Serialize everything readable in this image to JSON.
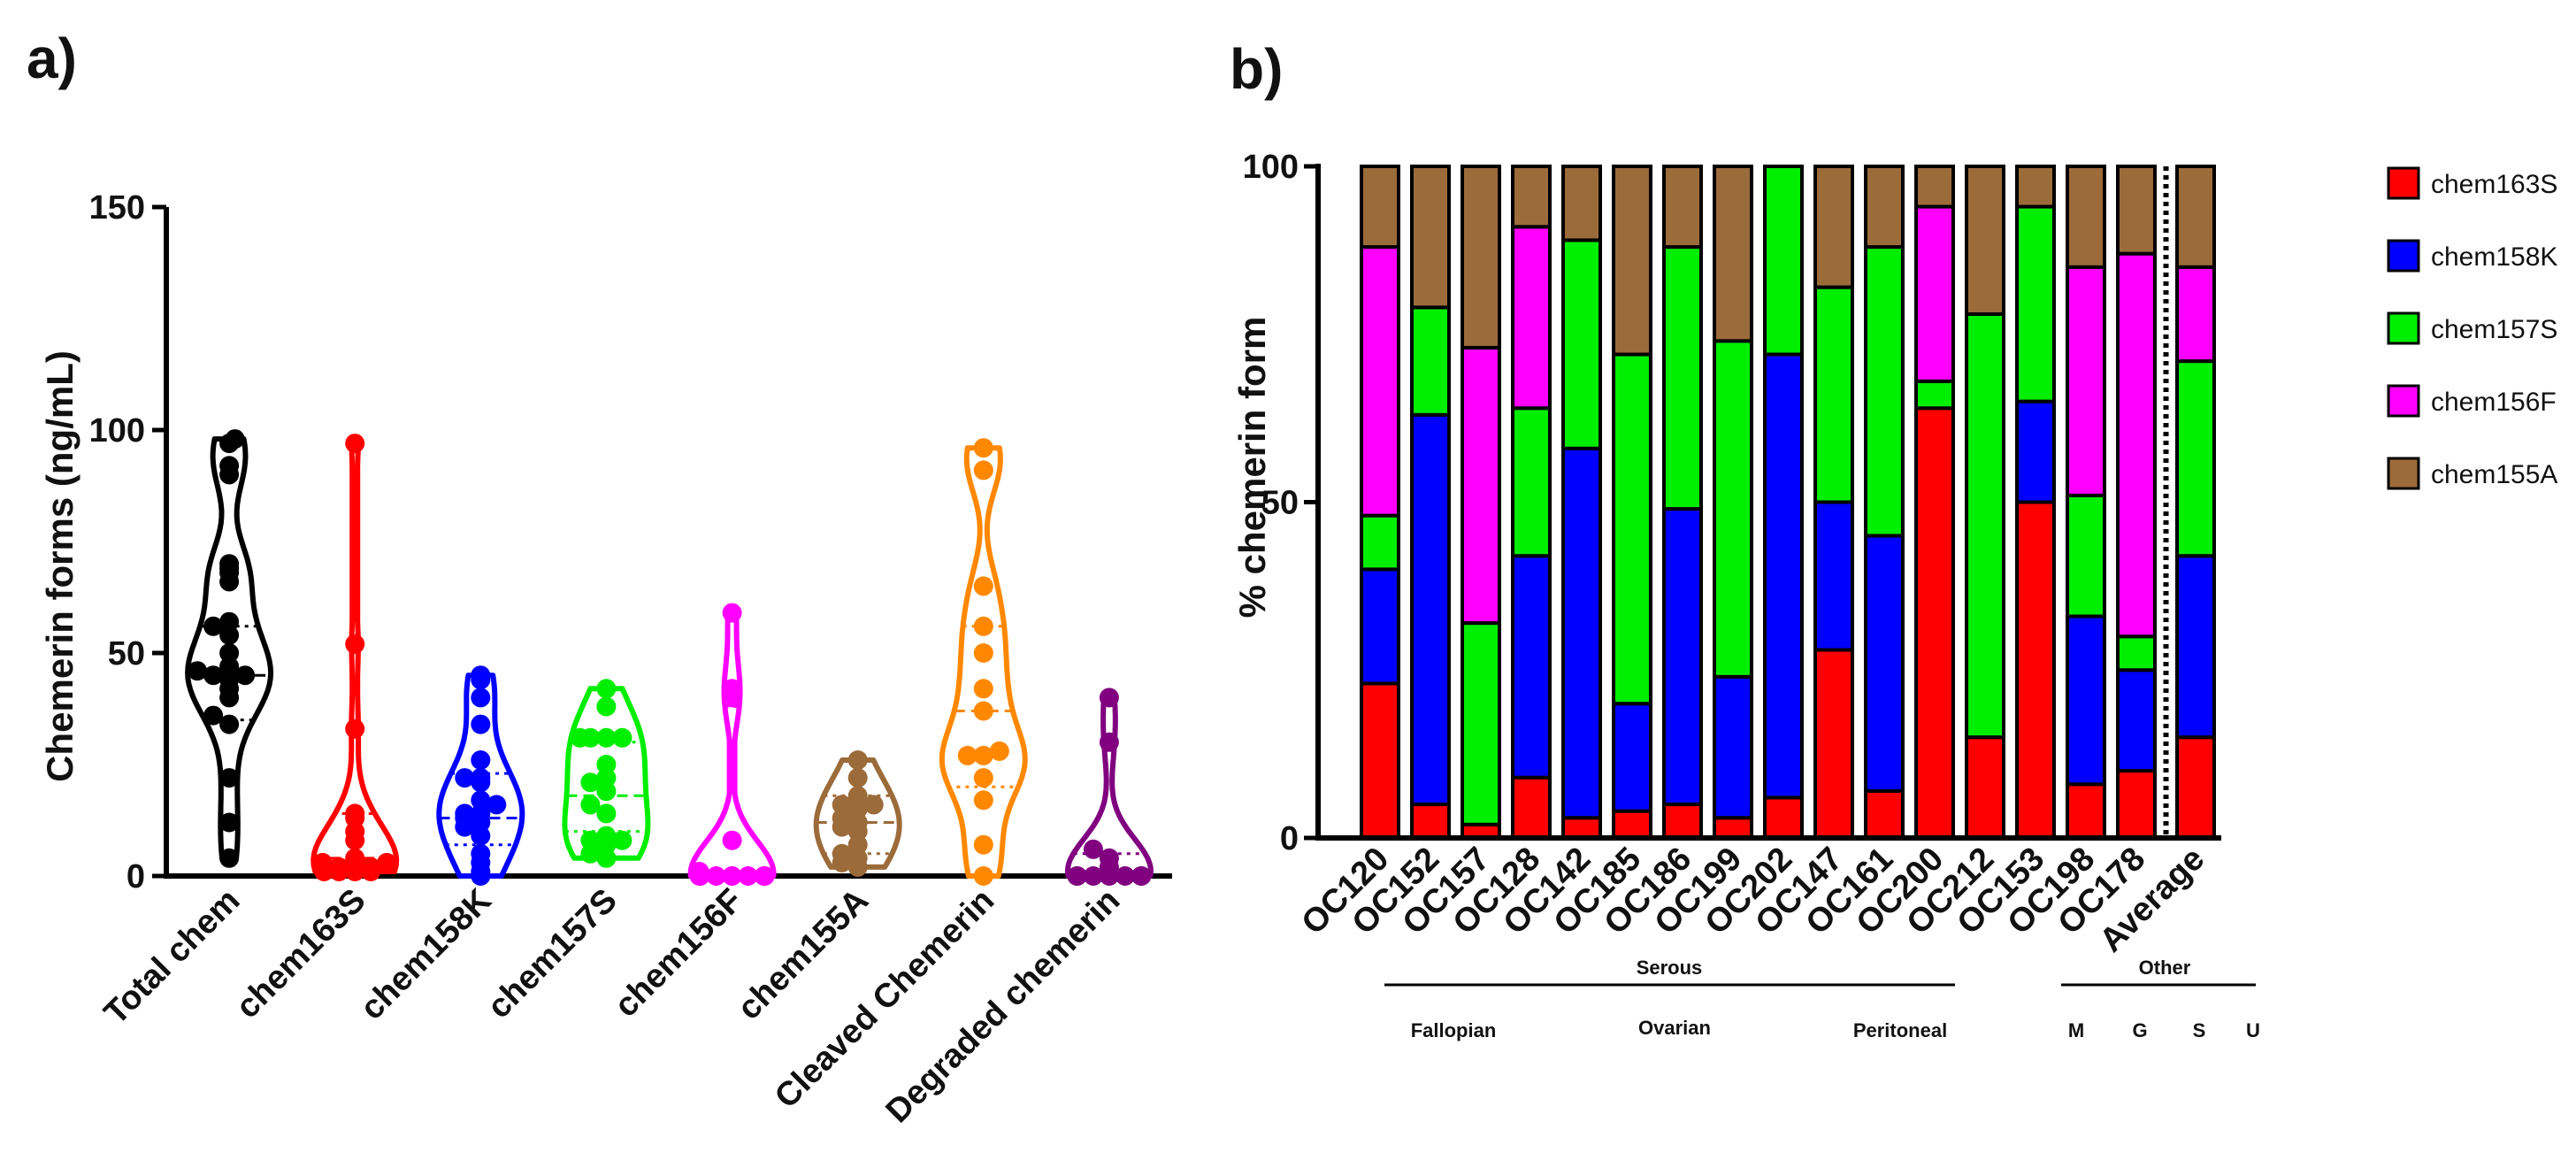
{
  "panels": {
    "a": {
      "label": "a)"
    },
    "b": {
      "label": "b)"
    }
  },
  "chart_data": [
    {
      "type": "violin",
      "panel": "a",
      "title": "",
      "xlabel": "",
      "ylabel": "Chemerin forms (ng/mL)",
      "ylim": [
        0,
        150
      ],
      "yticks": [
        0,
        50,
        100,
        150
      ],
      "categories": [
        "Total chem",
        "chem163S",
        "chem158K",
        "chem157S",
        "chem156F",
        "chem155A",
        "Cleaved Chemerin",
        "Degraded chemerin"
      ],
      "colors": [
        "#000000",
        "#ff0000",
        "#0000ff",
        "#00ee00",
        "#ff00ff",
        "#9c6b3a",
        "#ff8800",
        "#800080"
      ],
      "medians": [
        45,
        4,
        13,
        18,
        1,
        12,
        37,
        1
      ],
      "quartiles": [
        [
          35,
          56
        ],
        [
          2,
          14
        ],
        [
          7,
          23
        ],
        [
          10,
          30
        ],
        [
          0,
          38
        ],
        [
          5,
          18
        ],
        [
          20,
          56
        ],
        [
          0,
          5
        ]
      ],
      "points": [
        [
          98,
          97,
          92,
          90,
          70,
          69,
          68,
          66,
          57,
          56,
          54,
          50,
          47,
          46,
          45,
          45,
          44,
          42,
          40,
          36,
          34,
          22,
          12,
          4
        ],
        [
          97,
          52,
          33,
          14,
          13,
          10,
          8,
          4,
          3,
          3,
          2,
          2,
          2,
          2,
          1,
          1,
          1,
          1
        ],
        [
          45,
          44,
          40,
          34,
          26,
          22,
          22,
          21,
          17,
          16,
          14,
          14,
          13,
          12,
          11,
          9,
          5,
          3,
          1,
          0
        ],
        [
          42,
          38,
          31,
          31,
          31,
          31,
          25,
          22,
          21,
          19,
          16,
          14,
          9,
          8,
          8,
          7,
          5,
          4
        ],
        [
          59,
          42,
          40,
          8,
          1,
          0,
          0,
          0,
          0,
          0,
          0,
          0,
          0,
          0
        ],
        [
          26,
          22,
          18,
          16,
          16,
          15,
          13,
          12,
          11,
          10,
          7,
          5,
          4,
          3,
          2
        ],
        [
          96,
          91,
          65,
          56,
          50,
          42,
          37,
          28,
          27,
          27,
          22,
          17,
          7,
          0
        ],
        [
          40,
          30,
          6,
          4,
          2,
          1,
          0,
          0,
          0,
          0,
          0,
          0,
          0
        ]
      ]
    },
    {
      "type": "stacked-bar",
      "panel": "b",
      "title": "",
      "xlabel": "",
      "ylabel": "% chemerin form",
      "ylim": [
        0,
        100
      ],
      "yticks": [
        0,
        50,
        100
      ],
      "categories": [
        "OC120",
        "OC152",
        "OC157",
        "OC128",
        "OC142",
        "OC185",
        "OC186",
        "OC199",
        "OC202",
        "OC147",
        "OC161",
        "OC200",
        "OC212",
        "OC153",
        "OC198",
        "OC178",
        "Average"
      ],
      "series": [
        {
          "name": "chem163S",
          "color": "#ff0000",
          "values": [
            23,
            5,
            2,
            9,
            3,
            4,
            5,
            3,
            6,
            28,
            7,
            64,
            15,
            50,
            8,
            10,
            15
          ]
        },
        {
          "name": "chem158K",
          "color": "#0000ff",
          "values": [
            17,
            58,
            0,
            33,
            55,
            16,
            44,
            21,
            66,
            22,
            38,
            0,
            0,
            15,
            25,
            15,
            27
          ]
        },
        {
          "name": "chem157S",
          "color": "#00ee00",
          "values": [
            8,
            16,
            30,
            22,
            31,
            52,
            39,
            50,
            28,
            32,
            43,
            4,
            63,
            29,
            18,
            5,
            29
          ]
        },
        {
          "name": "chem156F",
          "color": "#ff00ff",
          "values": [
            40,
            0,
            41,
            27,
            0,
            0,
            0,
            0,
            0,
            0,
            0,
            26,
            0,
            0,
            34,
            57,
            14
          ]
        },
        {
          "name": "chem155A",
          "color": "#9c6b3a",
          "values": [
            12,
            21,
            27,
            9,
            11,
            28,
            12,
            26,
            0,
            18,
            12,
            6,
            22,
            6,
            15,
            13,
            15
          ]
        }
      ],
      "separator_before": "Average",
      "groups": {
        "serous": {
          "label": "Serous",
          "subgroups": [
            "Fallopian",
            "Ovarian",
            "Peritoneal"
          ]
        },
        "other": {
          "label": "Other",
          "subgroups": [
            "M",
            "G",
            "S",
            "U"
          ]
        }
      }
    }
  ]
}
